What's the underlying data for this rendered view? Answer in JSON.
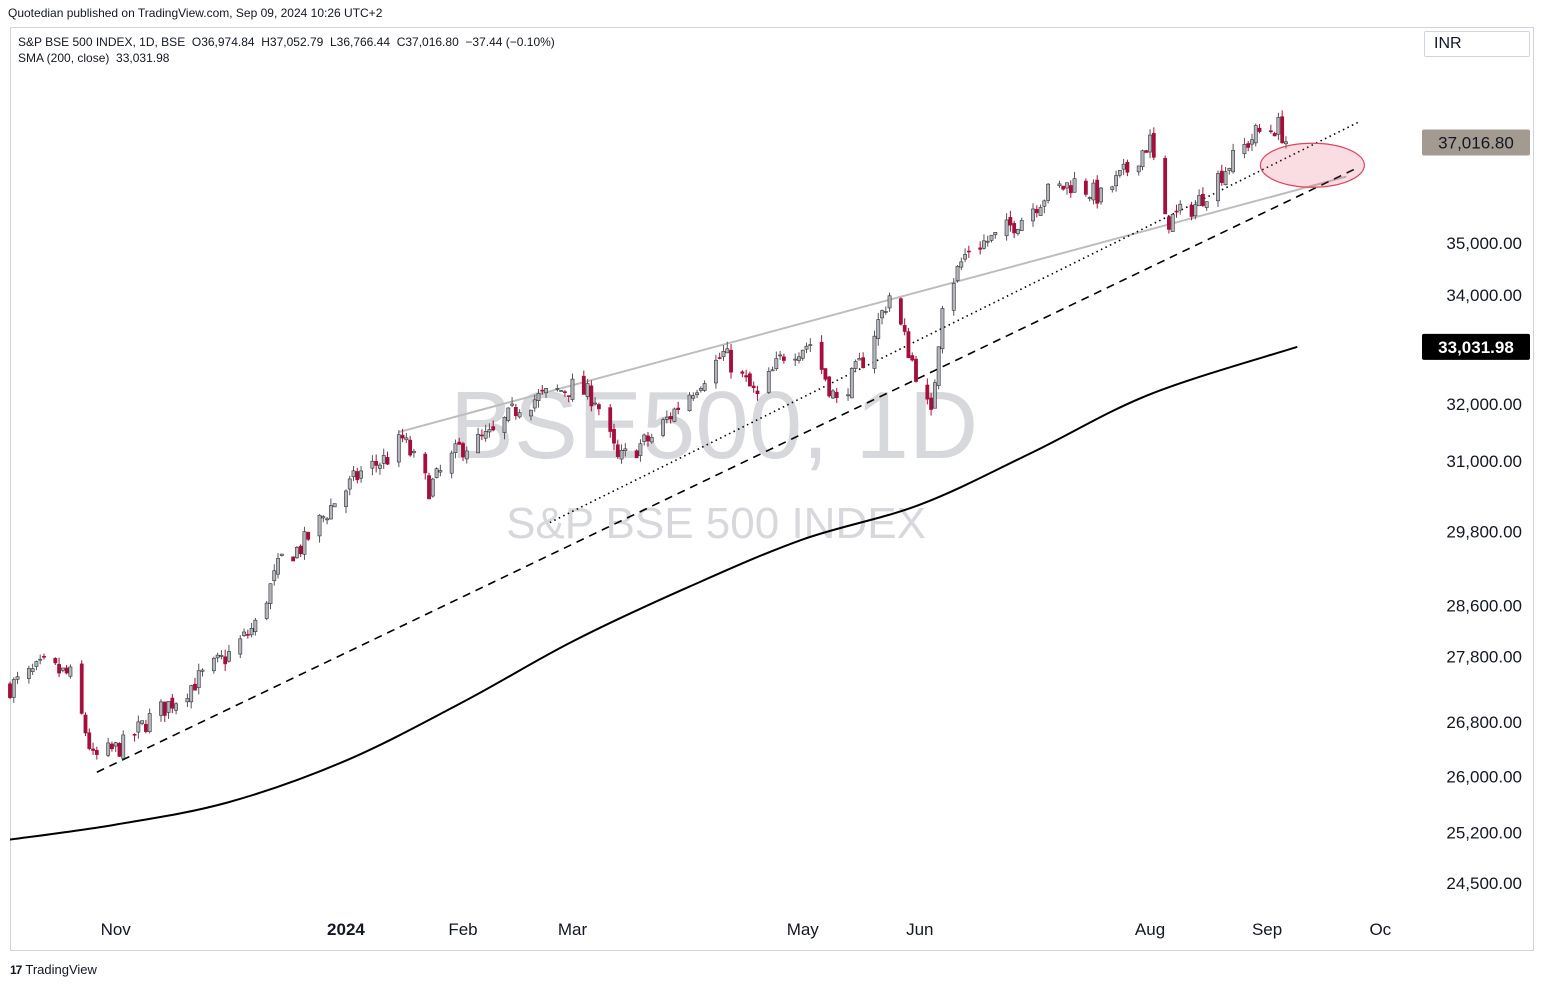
{
  "header": {
    "published": "Quotedian published on TradingView.com, Sep 09, 2024 10:26 UTC+2"
  },
  "legend": {
    "symbol_line": "S&P BSE 500 INDEX, 1D, BSE  O36,974.84  H37,052.79  L36,766.44  C37,016.80  −37.44 (−0.10%)",
    "sma_line": "SMA (200, close)  33,031.98"
  },
  "currency": "INR",
  "footer": {
    "brand": "TradingView",
    "logo_icon": "tradingview-logo-icon"
  },
  "colors": {
    "down": "#a50f3c",
    "up": "#b2b5be",
    "sma": "#000000",
    "trend": "#bdbdbd",
    "circle": "#e0455f"
  },
  "chart_data": {
    "type": "candlestick",
    "title": "BSE500, 1D",
    "subtitle": "S&P BSE 500 INDEX",
    "y_scale": "log",
    "ylim": [
      24100,
      38800
    ],
    "y_ticks": [
      {
        "value": 35000,
        "label": "35,000.00"
      },
      {
        "value": 34000,
        "label": "34,000.00"
      },
      {
        "value": 32000,
        "label": "32,000.00"
      },
      {
        "value": 31000,
        "label": "31,000.00"
      },
      {
        "value": 29800,
        "label": "29,800.00"
      },
      {
        "value": 28600,
        "label": "28,600.00"
      },
      {
        "value": 27800,
        "label": "27,800.00"
      },
      {
        "value": 26800,
        "label": "26,800.00"
      },
      {
        "value": 26000,
        "label": "26,000.00"
      },
      {
        "value": 25200,
        "label": "25,200.00"
      },
      {
        "value": 24500,
        "label": "24,500.00"
      }
    ],
    "x_ticks": [
      {
        "date": "2023-11-01",
        "label": "Nov",
        "bold": false
      },
      {
        "date": "2024-01-01",
        "label": "2024",
        "bold": true
      },
      {
        "date": "2024-02-01",
        "label": "Feb",
        "bold": false
      },
      {
        "date": "2024-03-01",
        "label": "Mar",
        "bold": false
      },
      {
        "date": "2024-05-01",
        "label": "May",
        "bold": false
      },
      {
        "date": "2024-06-01",
        "label": "Jun",
        "bold": false
      },
      {
        "date": "2024-08-01",
        "label": "Aug",
        "bold": false
      },
      {
        "date": "2024-09-01",
        "label": "Sep",
        "bold": false
      },
      {
        "date": "2024-10-01",
        "label": "Oc",
        "bold": false
      }
    ],
    "x_start": "2023-10-04",
    "x_end": "2024-10-05",
    "price_labels": [
      {
        "value": 37016.8,
        "label": "37,016.80",
        "style": "last"
      },
      {
        "value": 33031.98,
        "label": "33,031.98",
        "style": "sma"
      }
    ],
    "closes": [
      {
        "date": "2023-10-04",
        "close": 27330
      },
      {
        "date": "2023-10-13",
        "close": 27650
      },
      {
        "date": "2023-10-20",
        "close": 27500
      },
      {
        "date": "2023-10-26",
        "close": 26250
      },
      {
        "date": "2023-11-03",
        "close": 26450
      },
      {
        "date": "2023-11-10",
        "close": 26850
      },
      {
        "date": "2023-11-17",
        "close": 27150
      },
      {
        "date": "2023-11-24",
        "close": 27500
      },
      {
        "date": "2023-12-01",
        "close": 27830
      },
      {
        "date": "2023-12-08",
        "close": 28280
      },
      {
        "date": "2023-12-15",
        "close": 29350
      },
      {
        "date": "2023-12-20",
        "close": 29540
      },
      {
        "date": "2023-12-29",
        "close": 30300
      },
      {
        "date": "2024-01-05",
        "close": 30800
      },
      {
        "date": "2024-01-12",
        "close": 31050
      },
      {
        "date": "2024-01-16",
        "close": 31380
      },
      {
        "date": "2024-01-23",
        "close": 30530
      },
      {
        "date": "2024-01-31",
        "close": 31210
      },
      {
        "date": "2024-02-09",
        "close": 31450
      },
      {
        "date": "2024-02-16",
        "close": 31980
      },
      {
        "date": "2024-02-23",
        "close": 32160
      },
      {
        "date": "2024-03-01",
        "close": 32300
      },
      {
        "date": "2024-03-07",
        "close": 32110
      },
      {
        "date": "2024-03-13",
        "close": 31000
      },
      {
        "date": "2024-03-22",
        "close": 31400
      },
      {
        "date": "2024-04-01",
        "close": 32200
      },
      {
        "date": "2024-04-10",
        "close": 32900
      },
      {
        "date": "2024-04-19",
        "close": 32110
      },
      {
        "date": "2024-04-26",
        "close": 32900
      },
      {
        "date": "2024-05-03",
        "close": 33100
      },
      {
        "date": "2024-05-10",
        "close": 32010
      },
      {
        "date": "2024-05-17",
        "close": 32800
      },
      {
        "date": "2024-05-24",
        "close": 34000
      },
      {
        "date": "2024-06-04",
        "close": 31750
      },
      {
        "date": "2024-06-07",
        "close": 33900
      },
      {
        "date": "2024-06-14",
        "close": 34900
      },
      {
        "date": "2024-06-21",
        "close": 35100
      },
      {
        "date": "2024-06-28",
        "close": 35500
      },
      {
        "date": "2024-07-05",
        "close": 36000
      },
      {
        "date": "2024-07-12",
        "close": 36200
      },
      {
        "date": "2024-07-19",
        "close": 35900
      },
      {
        "date": "2024-07-26",
        "close": 36450
      },
      {
        "date": "2024-08-01",
        "close": 37050
      },
      {
        "date": "2024-08-05",
        "close": 35400
      },
      {
        "date": "2024-08-13",
        "close": 35750
      },
      {
        "date": "2024-08-20",
        "close": 36400
      },
      {
        "date": "2024-08-29",
        "close": 37200
      },
      {
        "date": "2024-09-04",
        "close": 37350
      },
      {
        "date": "2024-09-06",
        "close": 37054
      },
      {
        "date": "2024-09-09",
        "close": 37016.8
      }
    ],
    "sma_200": [
      {
        "date": "2023-10-04",
        "value": 25100
      },
      {
        "date": "2023-11-01",
        "value": 25310
      },
      {
        "date": "2023-12-01",
        "value": 25630
      },
      {
        "date": "2024-01-01",
        "value": 26230
      },
      {
        "date": "2024-02-01",
        "value": 27100
      },
      {
        "date": "2024-03-01",
        "value": 28030
      },
      {
        "date": "2024-04-01",
        "value": 28900
      },
      {
        "date": "2024-05-01",
        "value": 29670
      },
      {
        "date": "2024-06-01",
        "value": 30250
      },
      {
        "date": "2024-07-01",
        "value": 31150
      },
      {
        "date": "2024-08-01",
        "value": 32170
      },
      {
        "date": "2024-09-09",
        "value": 33031.98
      }
    ],
    "trendlines": [
      {
        "style": "solid",
        "from": {
          "date": "2024-01-15",
          "value": 31500
        },
        "to": {
          "date": "2024-09-22",
          "value": 36320
        }
      },
      {
        "style": "dotted",
        "from": {
          "date": "2024-02-24",
          "value": 29950
        },
        "to": {
          "date": "2024-09-25",
          "value": 37430
        }
      },
      {
        "style": "dashed",
        "from": {
          "date": "2023-10-27",
          "value": 26060
        },
        "to": {
          "date": "2024-09-25",
          "value": 36500
        }
      }
    ],
    "highlight": {
      "shape": "ellipse",
      "date": "2024-09-13",
      "value": 36550
    }
  }
}
